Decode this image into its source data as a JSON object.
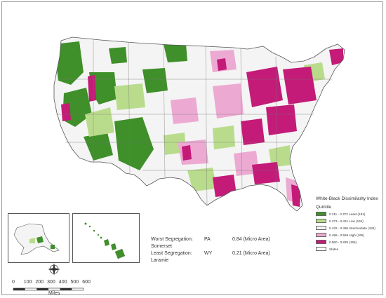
{
  "legend": {
    "title": "White-Black Dissimilarity Index",
    "subtitle": "Quintile",
    "items": [
      {
        "label": "0.211 - 0.372 Least (181)",
        "color": "#3f8f2a"
      },
      {
        "label": "0.373 - 0.431 Low (194)",
        "color": "#b9dc8c"
      },
      {
        "label": "0.432 - 0.495 Intermediate (184)",
        "color": "#f4f4f4"
      },
      {
        "label": "0.496 - 0.559 High (165)",
        "color": "#ecaad2"
      },
      {
        "label": "0.560 - 0.835 (195)",
        "color": "#c41a78"
      },
      {
        "label": "States",
        "color": "#ffffff"
      }
    ]
  },
  "annotation": {
    "worst_label": "Worst Segregation: Somerset",
    "worst_state": "PA",
    "worst_value": "0.84 (Micro Area)",
    "least_label": "Least Segregation: Laramie",
    "least_state": "WY",
    "least_value": "0.21 (Micro Area)"
  },
  "scale": {
    "ticks": [
      "0",
      "100",
      "200",
      "300",
      "400",
      "500",
      "600"
    ],
    "unit": "Miles"
  },
  "colors": {
    "least": "#3f8f2a",
    "low": "#b9dc8c",
    "intermediate": "#f4f4f4",
    "high": "#ecaad2",
    "highest": "#c41a78",
    "border": "#555555"
  },
  "map_layers": {
    "states_outline": "contiguous-us",
    "insets": [
      "alaska",
      "hawaii"
    ],
    "compass_icon": "north-arrow-icon"
  }
}
